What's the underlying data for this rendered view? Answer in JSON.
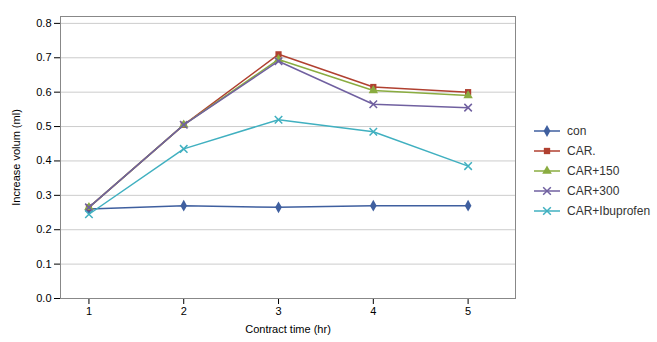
{
  "chart_data": {
    "type": "line",
    "xlabel": "Contract time (hr)",
    "ylabel": "Increase volum (ml)",
    "x": [
      1,
      2,
      3,
      4,
      5
    ],
    "series": [
      {
        "name": "con",
        "color": "#3f5f9f",
        "marker": "diamond",
        "line_style": "solid",
        "values": [
          0.26,
          0.27,
          0.265,
          0.27,
          0.27
        ]
      },
      {
        "name": "CAR.",
        "color": "#b04030",
        "marker": "square",
        "line_style": "solid",
        "values": [
          0.265,
          0.505,
          0.71,
          0.615,
          0.6
        ]
      },
      {
        "name": "CAR+150",
        "color": "#8aac40",
        "marker": "triangle",
        "line_style": "solid",
        "values": [
          0.265,
          0.505,
          0.695,
          0.605,
          0.59
        ]
      },
      {
        "name": "CAR+300",
        "color": "#7060a0",
        "marker": "x",
        "line_style": "solid",
        "values": [
          0.265,
          0.505,
          0.69,
          0.565,
          0.555
        ]
      },
      {
        "name": "CAR+Ibuprofen",
        "color": "#40b0c0",
        "marker": "x",
        "line_style": "solid",
        "values": [
          0.245,
          0.435,
          0.52,
          0.485,
          0.385
        ]
      }
    ],
    "xlim": [
      0.7,
      5.5
    ],
    "ylim": [
      0,
      0.82
    ],
    "xticks": [
      1,
      2,
      3,
      4,
      5
    ],
    "yticks": [
      {
        "value": 0,
        "label": "0.0"
      },
      0.1,
      0.2,
      0.3,
      0.4,
      0.5,
      0.6,
      0.7,
      0.8
    ],
    "grid": true,
    "legend": "right"
  }
}
